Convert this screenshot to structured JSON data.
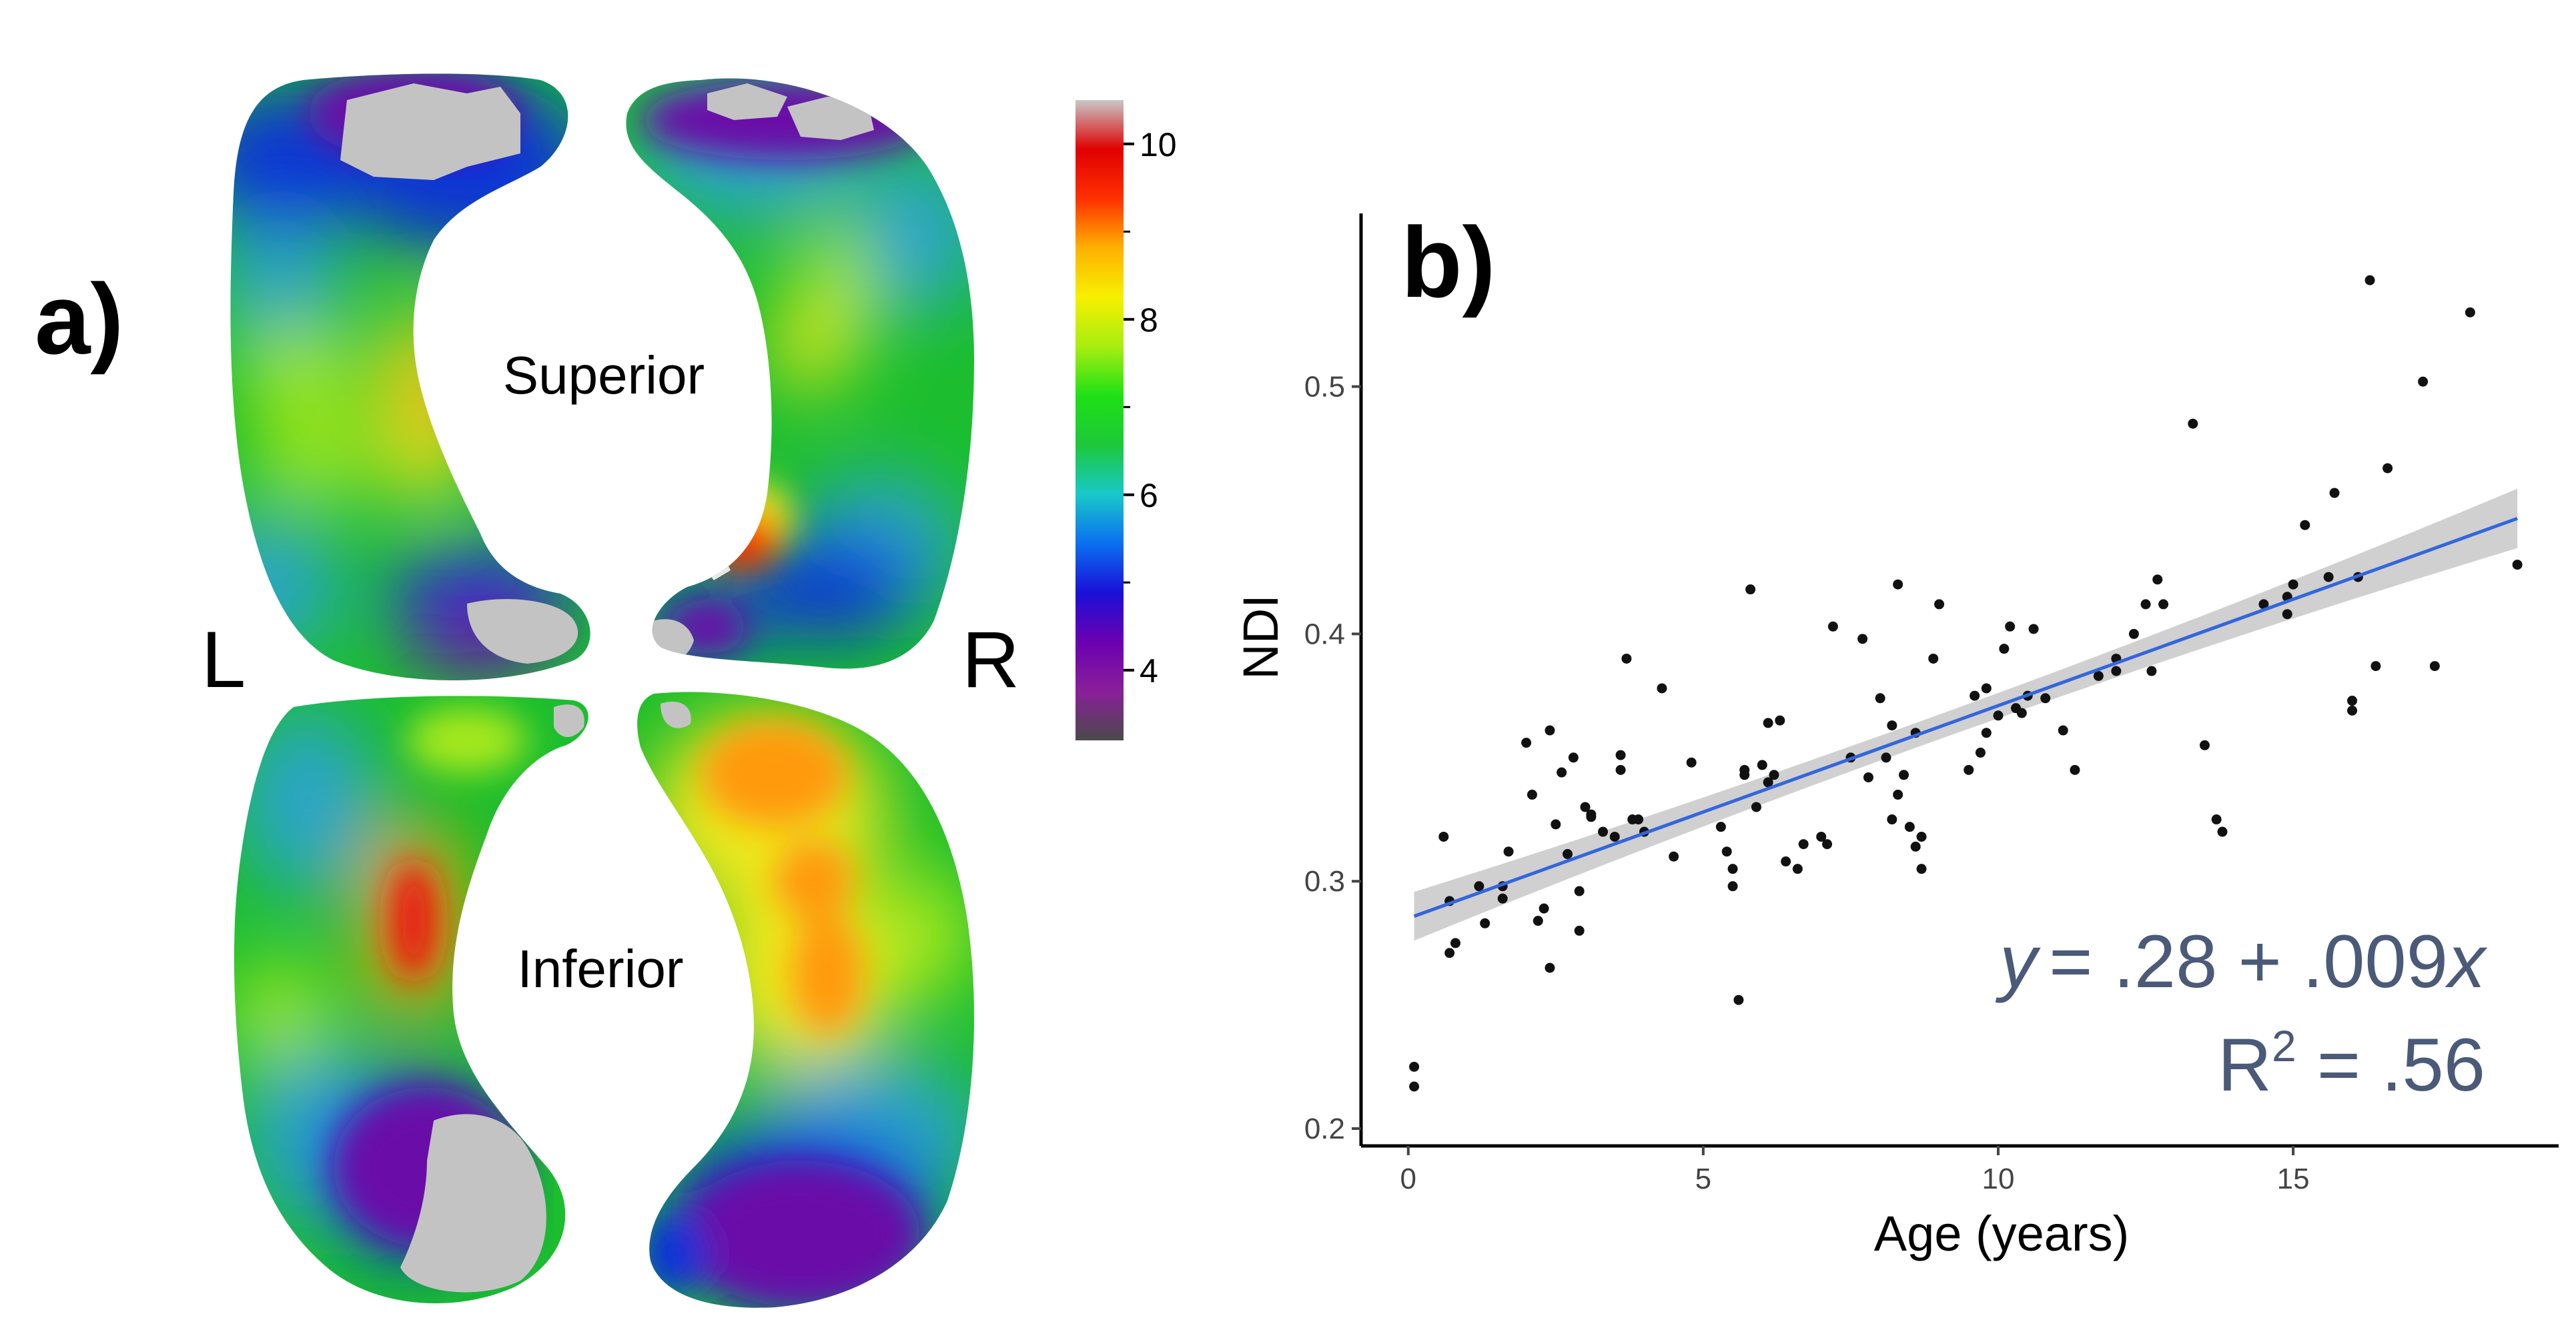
{
  "panel_a": {
    "label": "a)",
    "views": {
      "superior": "Superior",
      "inferior": "Inferior"
    },
    "hemispheres": {
      "left": "L",
      "right": "R"
    },
    "colorbar": {
      "ticks": [
        {
          "value": 4,
          "label": "4"
        },
        {
          "value": 6,
          "label": "6"
        },
        {
          "value": 8,
          "label": "8"
        },
        {
          "value": 10,
          "label": "10"
        }
      ],
      "minor_ticks": [
        5,
        7,
        9
      ],
      "range": [
        3.2,
        10.5
      ],
      "colors": [
        "#4a4a4a",
        "#8a1f9a",
        "#6a00b0",
        "#1a10d8",
        "#0a70f0",
        "#18c8c8",
        "#1cc83a",
        "#1ee014",
        "#a8ee10",
        "#f6f000",
        "#ffb000",
        "#ff3000",
        "#e00000",
        "#c8c8c8"
      ]
    },
    "surface_colors": {
      "gray": "#c3c3c3",
      "purple": "#6a0aa8",
      "blue": "#1030d8",
      "cyan": "#2ca4cc",
      "green": "#1cbe2e",
      "lime": "#a6e81c",
      "yellow": "#f0e81a",
      "orange": "#ff9a10",
      "red": "#e81414"
    }
  },
  "chart_data": {
    "type": "scatter",
    "panel_label": "b)",
    "xlabel": "Age (years)",
    "ylabel": "NDI",
    "xlim": [
      -0.8,
      19.5
    ],
    "ylim": [
      0.193,
      0.57
    ],
    "xticks": [
      0,
      5,
      10,
      15
    ],
    "yticks": [
      0.2,
      0.3,
      0.4,
      0.5
    ],
    "xtick_labels": [
      "0",
      "5",
      "10",
      "15"
    ],
    "ytick_labels": [
      "0.2",
      "0.3",
      "0.4",
      "0.5"
    ],
    "grid": false,
    "fit": {
      "intercept": 0.285,
      "slope": 0.0086,
      "x_range": [
        0.1,
        18.8
      ],
      "ci_half_width_ends": 0.012,
      "ci_half_width_mid": 0.005,
      "x_mean": 8.6,
      "line_color": "#3366dd",
      "band_color": "#c8c8c8"
    },
    "annotation": {
      "equation": {
        "y": "y",
        "eq": "= .28 + .009",
        "x": "x"
      },
      "r2": {
        "r": "R",
        "sup": "2",
        "rest": " = .56"
      },
      "color": "#4a5a78"
    },
    "points": [
      [
        0.1,
        0.225
      ],
      [
        0.1,
        0.217
      ],
      [
        0.6,
        0.318
      ],
      [
        0.7,
        0.292
      ],
      [
        0.7,
        0.271
      ],
      [
        0.8,
        0.275
      ],
      [
        1.2,
        0.298
      ],
      [
        1.3,
        0.283
      ],
      [
        1.6,
        0.293
      ],
      [
        1.6,
        0.298
      ],
      [
        1.7,
        0.312
      ],
      [
        2.0,
        0.356
      ],
      [
        2.1,
        0.335
      ],
      [
        2.2,
        0.284
      ],
      [
        2.3,
        0.289
      ],
      [
        2.4,
        0.361
      ],
      [
        2.4,
        0.265
      ],
      [
        2.5,
        0.323
      ],
      [
        2.6,
        0.344
      ],
      [
        2.7,
        0.311
      ],
      [
        2.8,
        0.35
      ],
      [
        2.9,
        0.296
      ],
      [
        2.9,
        0.28
      ],
      [
        3.0,
        0.33
      ],
      [
        3.1,
        0.326
      ],
      [
        3.1,
        0.327
      ],
      [
        3.3,
        0.32
      ],
      [
        3.5,
        0.318
      ],
      [
        3.6,
        0.345
      ],
      [
        3.6,
        0.351
      ],
      [
        3.7,
        0.39
      ],
      [
        3.8,
        0.325
      ],
      [
        3.9,
        0.325
      ],
      [
        4.0,
        0.32
      ],
      [
        4.3,
        0.378
      ],
      [
        4.5,
        0.31
      ],
      [
        4.8,
        0.348
      ],
      [
        5.3,
        0.322
      ],
      [
        5.4,
        0.312
      ],
      [
        5.5,
        0.305
      ],
      [
        5.5,
        0.298
      ],
      [
        5.6,
        0.252
      ],
      [
        5.7,
        0.345
      ],
      [
        5.7,
        0.343
      ],
      [
        5.8,
        0.418
      ],
      [
        5.9,
        0.33
      ],
      [
        6.0,
        0.347
      ],
      [
        6.1,
        0.364
      ],
      [
        6.1,
        0.34
      ],
      [
        6.2,
        0.343
      ],
      [
        6.3,
        0.365
      ],
      [
        6.4,
        0.308
      ],
      [
        6.6,
        0.305
      ],
      [
        6.7,
        0.315
      ],
      [
        7.0,
        0.318
      ],
      [
        7.1,
        0.315
      ],
      [
        7.2,
        0.403
      ],
      [
        7.5,
        0.35
      ],
      [
        7.7,
        0.398
      ],
      [
        7.8,
        0.342
      ],
      [
        8.0,
        0.374
      ],
      [
        8.1,
        0.35
      ],
      [
        8.2,
        0.363
      ],
      [
        8.2,
        0.325
      ],
      [
        8.3,
        0.42
      ],
      [
        8.3,
        0.335
      ],
      [
        8.4,
        0.343
      ],
      [
        8.5,
        0.322
      ],
      [
        8.6,
        0.314
      ],
      [
        8.6,
        0.36
      ],
      [
        8.7,
        0.318
      ],
      [
        8.7,
        0.305
      ],
      [
        8.9,
        0.39
      ],
      [
        9.0,
        0.412
      ],
      [
        9.5,
        0.345
      ],
      [
        9.6,
        0.375
      ],
      [
        9.7,
        0.352
      ],
      [
        9.8,
        0.378
      ],
      [
        9.8,
        0.36
      ],
      [
        10.0,
        0.367
      ],
      [
        10.1,
        0.394
      ],
      [
        10.2,
        0.403
      ],
      [
        10.3,
        0.37
      ],
      [
        10.4,
        0.368
      ],
      [
        10.5,
        0.375
      ],
      [
        10.6,
        0.402
      ],
      [
        10.8,
        0.374
      ],
      [
        11.1,
        0.361
      ],
      [
        11.3,
        0.345
      ],
      [
        11.7,
        0.383
      ],
      [
        12.0,
        0.385
      ],
      [
        12.0,
        0.39
      ],
      [
        12.3,
        0.4
      ],
      [
        12.5,
        0.412
      ],
      [
        12.6,
        0.385
      ],
      [
        12.7,
        0.422
      ],
      [
        12.8,
        0.412
      ],
      [
        13.3,
        0.485
      ],
      [
        13.5,
        0.355
      ],
      [
        13.7,
        0.325
      ],
      [
        13.8,
        0.32
      ],
      [
        14.5,
        0.412
      ],
      [
        14.9,
        0.415
      ],
      [
        14.9,
        0.408
      ],
      [
        15.0,
        0.42
      ],
      [
        15.2,
        0.444
      ],
      [
        15.6,
        0.423
      ],
      [
        15.7,
        0.457
      ],
      [
        16.0,
        0.373
      ],
      [
        16.0,
        0.369
      ],
      [
        16.1,
        0.423
      ],
      [
        16.3,
        0.543
      ],
      [
        16.4,
        0.387
      ],
      [
        16.6,
        0.467
      ],
      [
        17.2,
        0.502
      ],
      [
        17.4,
        0.387
      ],
      [
        18.0,
        0.53
      ],
      [
        18.8,
        0.428
      ]
    ]
  }
}
